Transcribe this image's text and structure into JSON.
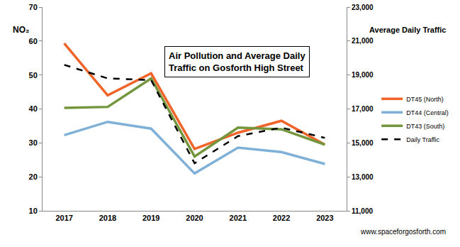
{
  "chart_data": {
    "type": "line",
    "title": "Air Pollution and Average Daily\nTraffic on Gosforth High Street",
    "y_label": "NO₂",
    "y2_label": "Average Daily Traffic",
    "source": "www.spaceforgosforth.com",
    "categories": [
      "2017",
      "2018",
      "2019",
      "2020",
      "2021",
      "2022",
      "2023"
    ],
    "series": [
      {
        "name": "DT45 (North)",
        "color": "#f0642a",
        "values": [
          59.3,
          44.0,
          50.5,
          28.2,
          33.0,
          36.5,
          29.5
        ]
      },
      {
        "name": "DT44 (Central)",
        "color": "#7fb1d8",
        "values": [
          32.3,
          36.2,
          34.2,
          21.0,
          28.6,
          27.3,
          23.8
        ]
      },
      {
        "name": "DT43 (South)",
        "color": "#73963d",
        "values": [
          40.3,
          40.6,
          49.0,
          26.0,
          34.5,
          34.0,
          29.5
        ]
      },
      {
        "name": "Daily Traffic",
        "color": "#000000",
        "line_style": "dashed",
        "axis": "y2",
        "values": [
          19600,
          18800,
          18700,
          13800,
          15400,
          15900,
          15300
        ]
      }
    ],
    "ylim": [
      10,
      70
    ],
    "yticks": [
      10,
      20,
      30,
      40,
      50,
      60,
      70
    ],
    "y2lim": [
      11000,
      23000
    ],
    "y2ticks": [
      {
        "value": 11000,
        "label": "11,000"
      },
      {
        "value": 13000,
        "label": "13,000"
      },
      {
        "value": 15000,
        "label": "15,000"
      },
      {
        "value": 17000,
        "label": "17,000"
      },
      {
        "value": 19000,
        "label": "19,000"
      },
      {
        "value": 21000,
        "label": "21,000"
      },
      {
        "value": 23000,
        "label": "23,000"
      }
    ],
    "grid": false,
    "legend": "right"
  }
}
